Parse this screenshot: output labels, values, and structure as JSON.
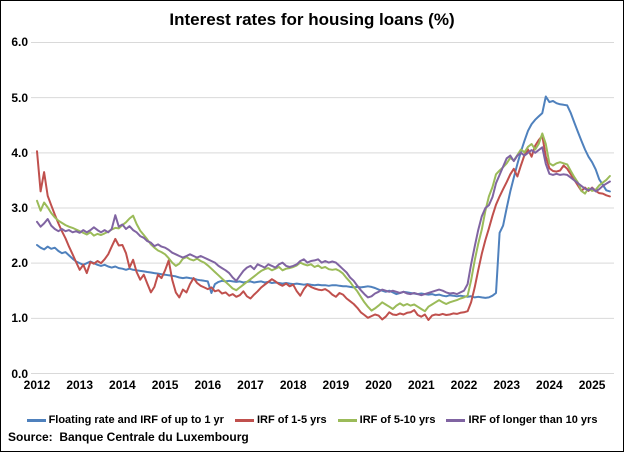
{
  "title": "Interest rates for housing loans (%)",
  "source_note": "Source:  Banque Centrale du Luxembourg",
  "chart_data": {
    "type": "line",
    "title": "Interest rates for housing loans (%)",
    "x_unit": "monthly",
    "x_start": "2012-01",
    "x_end": "2025-06",
    "x_tick_labels": [
      "2012",
      "2013",
      "2014",
      "2015",
      "2016",
      "2017",
      "2018",
      "2019",
      "2020",
      "2021",
      "2022",
      "2023",
      "2024",
      "2025"
    ],
    "y_ticks": [
      "6.0",
      "5.0",
      "4.0",
      "3.0",
      "2.0",
      "1.0",
      "0.0"
    ],
    "ylim": [
      0,
      6
    ],
    "grid": "horizontal",
    "gridline_color": "#D9D9D9",
    "legend_position": "bottom",
    "series": [
      {
        "name": "Floating rate and IRF of up to 1 yr",
        "color": "#4F81BD",
        "values": [
          2.33,
          2.28,
          2.25,
          2.3,
          2.26,
          2.28,
          2.22,
          2.18,
          2.2,
          2.14,
          2.08,
          2.03,
          2.0,
          1.97,
          2.0,
          2.03,
          2.0,
          1.97,
          1.95,
          1.97,
          1.94,
          1.92,
          1.94,
          1.91,
          1.9,
          1.88,
          1.9,
          1.88,
          1.87,
          1.86,
          1.85,
          1.84,
          1.83,
          1.82,
          1.81,
          1.8,
          1.79,
          1.78,
          1.77,
          1.76,
          1.74,
          1.73,
          1.74,
          1.73,
          1.72,
          1.7,
          1.69,
          1.68,
          1.67,
          1.46,
          1.62,
          1.66,
          1.68,
          1.67,
          1.68,
          1.67,
          1.66,
          1.67,
          1.65,
          1.66,
          1.67,
          1.65,
          1.66,
          1.67,
          1.65,
          1.66,
          1.64,
          1.65,
          1.64,
          1.63,
          1.64,
          1.63,
          1.62,
          1.63,
          1.62,
          1.61,
          1.62,
          1.61,
          1.6,
          1.61,
          1.6,
          1.6,
          1.59,
          1.6,
          1.6,
          1.59,
          1.58,
          1.58,
          1.57,
          1.56,
          1.57,
          1.56,
          1.57,
          1.58,
          1.57,
          1.55,
          1.52,
          1.5,
          1.48,
          1.5,
          1.47,
          1.44,
          1.46,
          1.48,
          1.47,
          1.46,
          1.45,
          1.44,
          1.45,
          1.44,
          1.43,
          1.44,
          1.42,
          1.43,
          1.41,
          1.4,
          1.42,
          1.41,
          1.4,
          1.41,
          1.4,
          1.39,
          1.4,
          1.38,
          1.39,
          1.38,
          1.37,
          1.38,
          1.41,
          1.46,
          2.55,
          2.68,
          3.0,
          3.3,
          3.55,
          3.8,
          4.02,
          4.22,
          4.4,
          4.52,
          4.6,
          4.66,
          4.72,
          5.02,
          4.92,
          4.94,
          4.9,
          4.88,
          4.87,
          4.86,
          4.72,
          4.55,
          4.38,
          4.22,
          4.06,
          3.93,
          3.83,
          3.7,
          3.52,
          3.42,
          3.32,
          3.3
        ]
      },
      {
        "name": "IRF of 1-5 yrs",
        "color": "#C0504D",
        "values": [
          4.03,
          3.3,
          3.65,
          3.22,
          3.05,
          2.88,
          2.72,
          2.58,
          2.45,
          2.3,
          2.16,
          2.02,
          1.88,
          1.97,
          1.82,
          2.02,
          1.99,
          2.04,
          2.0,
          2.07,
          2.16,
          2.3,
          2.44,
          2.32,
          2.33,
          2.18,
          1.92,
          2.06,
          1.84,
          1.7,
          1.79,
          1.63,
          1.47,
          1.57,
          1.79,
          1.73,
          1.87,
          2.05,
          1.7,
          1.47,
          1.38,
          1.52,
          1.47,
          1.62,
          1.73,
          1.64,
          1.59,
          1.56,
          1.53,
          1.56,
          1.49,
          1.51,
          1.45,
          1.47,
          1.41,
          1.44,
          1.39,
          1.42,
          1.49,
          1.4,
          1.36,
          1.43,
          1.49,
          1.56,
          1.61,
          1.66,
          1.71,
          1.67,
          1.62,
          1.59,
          1.63,
          1.58,
          1.61,
          1.49,
          1.41,
          1.53,
          1.61,
          1.57,
          1.54,
          1.52,
          1.51,
          1.53,
          1.49,
          1.43,
          1.39,
          1.46,
          1.43,
          1.36,
          1.31,
          1.26,
          1.19,
          1.11,
          1.06,
          1.01,
          1.04,
          1.07,
          1.05,
          0.98,
          1.03,
          1.11,
          1.07,
          1.06,
          1.09,
          1.07,
          1.1,
          1.11,
          1.15,
          1.06,
          1.03,
          1.07,
          0.97,
          1.05,
          1.07,
          1.06,
          1.08,
          1.06,
          1.07,
          1.09,
          1.08,
          1.1,
          1.11,
          1.13,
          1.29,
          1.56,
          1.87,
          2.17,
          2.42,
          2.63,
          2.86,
          3.06,
          3.21,
          3.34,
          3.47,
          3.61,
          3.71,
          3.57,
          3.77,
          3.96,
          4.06,
          3.93,
          4.13,
          4.23,
          4.31,
          3.93,
          3.72,
          3.67,
          3.66,
          3.68,
          3.77,
          3.71,
          3.61,
          3.51,
          3.41,
          3.31,
          3.37,
          3.31,
          3.37,
          3.31,
          3.27,
          3.26,
          3.23,
          3.21
        ]
      },
      {
        "name": "IRF of 5-10 yrs",
        "color": "#9BBB59",
        "values": [
          3.13,
          2.95,
          3.1,
          3.01,
          2.91,
          2.83,
          2.77,
          2.73,
          2.69,
          2.66,
          2.64,
          2.61,
          2.58,
          2.55,
          2.52,
          2.56,
          2.5,
          2.53,
          2.51,
          2.54,
          2.57,
          2.61,
          2.64,
          2.63,
          2.69,
          2.74,
          2.81,
          2.86,
          2.71,
          2.59,
          2.51,
          2.43,
          2.34,
          2.28,
          2.23,
          2.2,
          2.16,
          2.09,
          2.01,
          1.95,
          1.99,
          2.08,
          2.11,
          2.07,
          2.05,
          2.08,
          2.04,
          2.01,
          1.96,
          1.9,
          1.84,
          1.78,
          1.72,
          1.66,
          1.6,
          1.54,
          1.51,
          1.56,
          1.61,
          1.66,
          1.71,
          1.76,
          1.81,
          1.86,
          1.89,
          1.91,
          1.87,
          1.9,
          1.93,
          1.87,
          1.9,
          1.91,
          1.93,
          1.96,
          2.01,
          1.98,
          1.96,
          1.98,
          1.93,
          1.96,
          1.91,
          1.93,
          1.89,
          1.88,
          1.89,
          1.86,
          1.81,
          1.73,
          1.66,
          1.57,
          1.49,
          1.39,
          1.29,
          1.21,
          1.14,
          1.18,
          1.23,
          1.29,
          1.25,
          1.21,
          1.17,
          1.23,
          1.27,
          1.23,
          1.26,
          1.23,
          1.25,
          1.21,
          1.17,
          1.13,
          1.21,
          1.25,
          1.29,
          1.33,
          1.29,
          1.26,
          1.29,
          1.31,
          1.33,
          1.36,
          1.38,
          1.41,
          1.69,
          2.05,
          2.35,
          2.61,
          2.95,
          3.21,
          3.38,
          3.61,
          3.68,
          3.74,
          3.81,
          3.91,
          3.86,
          3.96,
          4.06,
          4.01,
          4.11,
          4.16,
          4.06,
          4.16,
          4.35,
          4.16,
          3.81,
          3.77,
          3.81,
          3.83,
          3.81,
          3.79,
          3.67,
          3.56,
          3.46,
          3.31,
          3.26,
          3.36,
          3.31,
          3.33,
          3.41,
          3.46,
          3.51,
          3.58
        ]
      },
      {
        "name": "IRF of longer than 10 yrs",
        "color": "#8064A2",
        "values": [
          2.75,
          2.66,
          2.72,
          2.8,
          2.68,
          2.62,
          2.58,
          2.62,
          2.58,
          2.6,
          2.56,
          2.58,
          2.55,
          2.6,
          2.56,
          2.6,
          2.65,
          2.6,
          2.56,
          2.6,
          2.56,
          2.62,
          2.87,
          2.66,
          2.7,
          2.62,
          2.67,
          2.6,
          2.56,
          2.49,
          2.46,
          2.4,
          2.37,
          2.31,
          2.34,
          2.3,
          2.28,
          2.24,
          2.19,
          2.16,
          2.13,
          2.1,
          2.13,
          2.16,
          2.13,
          2.1,
          2.13,
          2.1,
          2.07,
          2.04,
          2.01,
          1.95,
          1.91,
          1.87,
          1.82,
          1.74,
          1.68,
          1.77,
          1.86,
          1.92,
          1.95,
          1.89,
          1.98,
          1.95,
          1.92,
          1.98,
          1.95,
          1.92,
          1.98,
          2.01,
          1.95,
          1.93,
          1.95,
          1.98,
          2.04,
          2.07,
          2.01,
          2.04,
          2.05,
          2.07,
          2.01,
          2.04,
          2.01,
          2.03,
          2.01,
          1.95,
          1.89,
          1.83,
          1.74,
          1.68,
          1.59,
          1.51,
          1.44,
          1.38,
          1.4,
          1.45,
          1.48,
          1.52,
          1.5,
          1.48,
          1.5,
          1.48,
          1.46,
          1.48,
          1.45,
          1.44,
          1.46,
          1.44,
          1.42,
          1.44,
          1.46,
          1.48,
          1.5,
          1.52,
          1.5,
          1.47,
          1.45,
          1.46,
          1.44,
          1.47,
          1.5,
          1.62,
          1.98,
          2.3,
          2.6,
          2.85,
          3.0,
          3.05,
          3.2,
          3.45,
          3.6,
          3.75,
          3.9,
          3.95,
          3.85,
          3.95,
          4.0,
          3.95,
          4.0,
          4.05,
          4.0,
          4.05,
          4.1,
          3.8,
          3.62,
          3.6,
          3.62,
          3.6,
          3.61,
          3.6,
          3.55,
          3.5,
          3.45,
          3.4,
          3.35,
          3.32,
          3.36,
          3.3,
          3.34,
          3.4,
          3.44,
          3.48
        ]
      }
    ],
    "source_note": "Source:  Banque Centrale du Luxembourg"
  }
}
